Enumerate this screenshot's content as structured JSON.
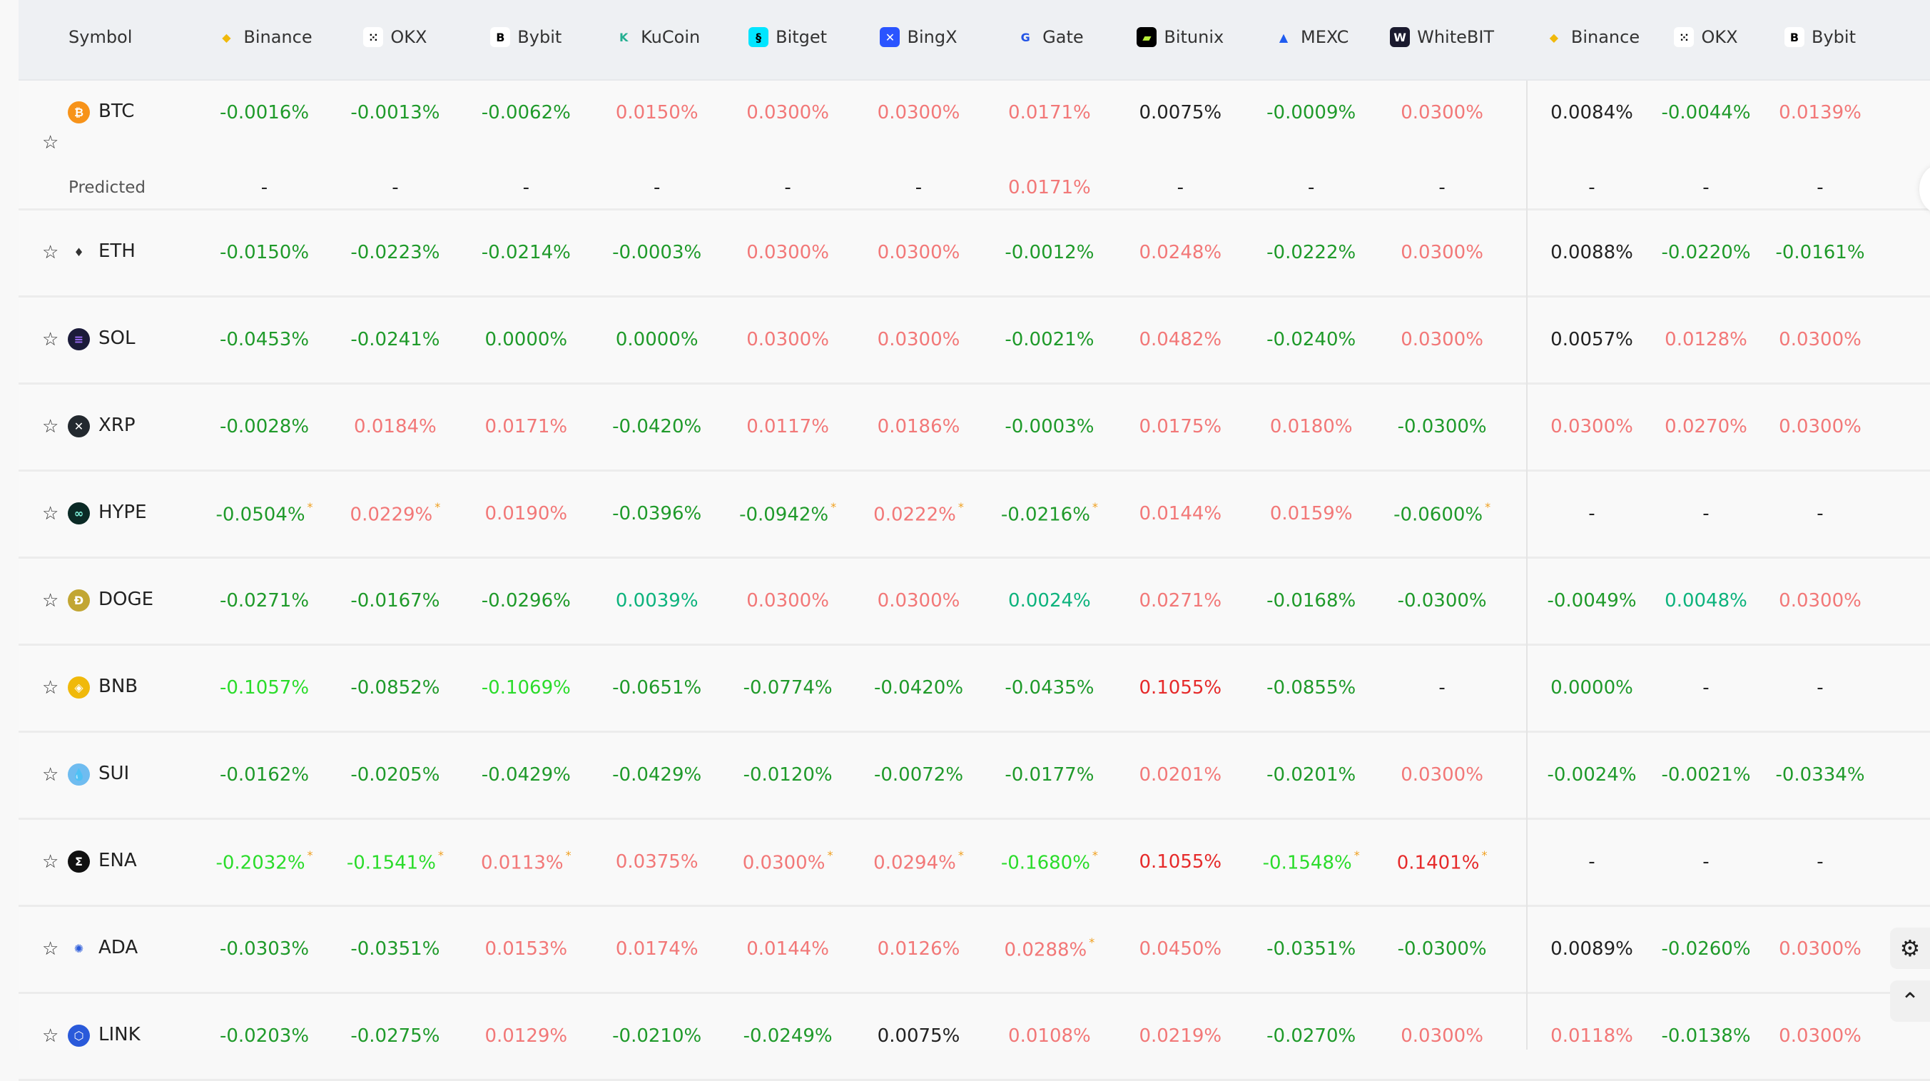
{
  "header": {
    "symbol_label": "Symbol",
    "exchanges": [
      {
        "name": "Binance",
        "icon": "binance-icon",
        "color": "#f0b90b",
        "glyph": "◆",
        "fg": "#f0b90b",
        "bg": "transparent"
      },
      {
        "name": "OKX",
        "icon": "okx-icon",
        "glyph": "⁙",
        "fg": "#000",
        "bg": "#fff"
      },
      {
        "name": "Bybit",
        "icon": "bybit-icon",
        "glyph": "B",
        "fg": "#000",
        "bg": "#fff"
      },
      {
        "name": "KuCoin",
        "icon": "kucoin-icon",
        "glyph": "K",
        "fg": "#23af91",
        "bg": "transparent"
      },
      {
        "name": "Bitget",
        "icon": "bitget-icon",
        "glyph": "§",
        "fg": "#000",
        "bg": "#00e5ff"
      },
      {
        "name": "BingX",
        "icon": "bingx-icon",
        "glyph": "✕",
        "fg": "#fff",
        "bg": "#2a54ff"
      },
      {
        "name": "Gate",
        "icon": "gate-icon",
        "glyph": "G",
        "fg": "#2354e6",
        "bg": "transparent"
      },
      {
        "name": "Bitunix",
        "icon": "bitunix-icon",
        "glyph": "▰",
        "fg": "#b8f03a",
        "bg": "#000"
      },
      {
        "name": "MEXC",
        "icon": "mexc-icon",
        "glyph": "▲",
        "fg": "#1f5cf0",
        "bg": "transparent"
      },
      {
        "name": "WhiteBIT",
        "icon": "whitebit-icon",
        "glyph": "W",
        "fg": "#fff",
        "bg": "#1a1a2e"
      },
      {
        "name": "Binance",
        "icon": "binance-icon",
        "glyph": "◆",
        "fg": "#f0b90b",
        "bg": "transparent"
      },
      {
        "name": "OKX",
        "icon": "okx-icon",
        "glyph": "⁙",
        "fg": "#000",
        "bg": "#fff"
      },
      {
        "name": "Bybit",
        "icon": "bybit-icon",
        "glyph": "B",
        "fg": "#000",
        "bg": "#fff"
      }
    ]
  },
  "colors": {
    "g": "#1f9a2a",
    "lg": "#2bdc2b",
    "t": "#0db37d",
    "p": "#f27878",
    "r": "#e62a2a",
    "k": "#222222",
    "asterisk": "#f0a020"
  },
  "predicted_label": "Predicted",
  "rows": [
    {
      "symbol": "BTC",
      "coin_color": "#f7931a",
      "glyph": "₿",
      "cells": [
        [
          "-0.0016%",
          "g"
        ],
        [
          "-0.0013%",
          "g"
        ],
        [
          "-0.0062%",
          "g"
        ],
        [
          "0.0150%",
          "p"
        ],
        [
          "0.0300%",
          "p"
        ],
        [
          "0.0300%",
          "p"
        ],
        [
          "0.0171%",
          "p"
        ],
        [
          "0.0075%",
          "k"
        ],
        [
          "-0.0009%",
          "g"
        ],
        [
          "0.0300%",
          "p"
        ],
        [
          "0.0084%",
          "k"
        ],
        [
          "-0.0044%",
          "g"
        ],
        [
          "0.0139%",
          "p"
        ]
      ],
      "predicted": [
        [
          "-",
          "k"
        ],
        [
          "-",
          "k"
        ],
        [
          "-",
          "k"
        ],
        [
          "-",
          "k"
        ],
        [
          "-",
          "k"
        ],
        [
          "-",
          "k"
        ],
        [
          "0.0171%",
          "p"
        ],
        [
          "-",
          "k"
        ],
        [
          "-",
          "k"
        ],
        [
          "-",
          "k"
        ],
        [
          "-",
          "k"
        ],
        [
          "-",
          "k"
        ],
        [
          "-",
          "k"
        ]
      ]
    },
    {
      "symbol": "ETH",
      "coin_color": "#f9f9f9",
      "glyph": "♦",
      "fg": "#333",
      "cells": [
        [
          "-0.0150%",
          "g"
        ],
        [
          "-0.0223%",
          "g"
        ],
        [
          "-0.0214%",
          "g"
        ],
        [
          "-0.0003%",
          "g"
        ],
        [
          "0.0300%",
          "p"
        ],
        [
          "0.0300%",
          "p"
        ],
        [
          "-0.0012%",
          "g"
        ],
        [
          "0.0248%",
          "p"
        ],
        [
          "-0.0222%",
          "g"
        ],
        [
          "0.0300%",
          "p"
        ],
        [
          "0.0088%",
          "k"
        ],
        [
          "-0.0220%",
          "g"
        ],
        [
          "-0.0161%",
          "g"
        ]
      ]
    },
    {
      "symbol": "SOL",
      "coin_color": "#1b1b3a",
      "glyph": "≡",
      "fg": "#9b6cf7",
      "cells": [
        [
          "-0.0453%",
          "g"
        ],
        [
          "-0.0241%",
          "g"
        ],
        [
          "0.0000%",
          "g"
        ],
        [
          "0.0000%",
          "g"
        ],
        [
          "0.0300%",
          "p"
        ],
        [
          "0.0300%",
          "p"
        ],
        [
          "-0.0021%",
          "g"
        ],
        [
          "0.0482%",
          "p"
        ],
        [
          "-0.0240%",
          "g"
        ],
        [
          "0.0300%",
          "p"
        ],
        [
          "0.0057%",
          "k"
        ],
        [
          "0.0128%",
          "p"
        ],
        [
          "0.0300%",
          "p"
        ]
      ]
    },
    {
      "symbol": "XRP",
      "coin_color": "#23292f",
      "glyph": "✕",
      "cells": [
        [
          "-0.0028%",
          "g"
        ],
        [
          "0.0184%",
          "p"
        ],
        [
          "0.0171%",
          "p"
        ],
        [
          "-0.0420%",
          "g"
        ],
        [
          "0.0117%",
          "p"
        ],
        [
          "0.0186%",
          "p"
        ],
        [
          "-0.0003%",
          "g"
        ],
        [
          "0.0175%",
          "p"
        ],
        [
          "0.0180%",
          "p"
        ],
        [
          "-0.0300%",
          "g"
        ],
        [
          "0.0300%",
          "p"
        ],
        [
          "0.0270%",
          "p"
        ],
        [
          "0.0300%",
          "p"
        ]
      ]
    },
    {
      "symbol": "HYPE",
      "coin_color": "#0b2a26",
      "glyph": "∞",
      "fg": "#7ff2dc",
      "cells": [
        [
          "-0.0504%",
          "g",
          1
        ],
        [
          "0.0229%",
          "p",
          1
        ],
        [
          "0.0190%",
          "p"
        ],
        [
          "-0.0396%",
          "g"
        ],
        [
          "-0.0942%",
          "g",
          1
        ],
        [
          "0.0222%",
          "p",
          1
        ],
        [
          "-0.0216%",
          "g",
          1
        ],
        [
          "0.0144%",
          "p"
        ],
        [
          "0.0159%",
          "p"
        ],
        [
          "-0.0600%",
          "g",
          1
        ],
        [
          "-",
          "k"
        ],
        [
          "-",
          "k"
        ],
        [
          "-",
          "k"
        ]
      ]
    },
    {
      "symbol": "DOGE",
      "coin_color": "#c2a633",
      "glyph": "Ð",
      "cells": [
        [
          "-0.0271%",
          "g"
        ],
        [
          "-0.0167%",
          "g"
        ],
        [
          "-0.0296%",
          "g"
        ],
        [
          "0.0039%",
          "t"
        ],
        [
          "0.0300%",
          "p"
        ],
        [
          "0.0300%",
          "p"
        ],
        [
          "0.0024%",
          "t"
        ],
        [
          "0.0271%",
          "p"
        ],
        [
          "-0.0168%",
          "g"
        ],
        [
          "-0.0300%",
          "g"
        ],
        [
          "-0.0049%",
          "g"
        ],
        [
          "0.0048%",
          "t"
        ],
        [
          "0.0300%",
          "p"
        ]
      ]
    },
    {
      "symbol": "BNB",
      "coin_color": "#f0b90b",
      "glyph": "◈",
      "cells": [
        [
          "-0.1057%",
          "lg"
        ],
        [
          "-0.0852%",
          "g"
        ],
        [
          "-0.1069%",
          "lg"
        ],
        [
          "-0.0651%",
          "g"
        ],
        [
          "-0.0774%",
          "g"
        ],
        [
          "-0.0420%",
          "g"
        ],
        [
          "-0.0435%",
          "g"
        ],
        [
          "0.1055%",
          "r"
        ],
        [
          "-0.0855%",
          "g"
        ],
        [
          "-",
          "k"
        ],
        [
          "0.0000%",
          "g"
        ],
        [
          "-",
          "k"
        ],
        [
          "-",
          "k"
        ]
      ]
    },
    {
      "symbol": "SUI",
      "coin_color": "#6fbcf0",
      "glyph": "💧",
      "cells": [
        [
          "-0.0162%",
          "g"
        ],
        [
          "-0.0205%",
          "g"
        ],
        [
          "-0.0429%",
          "g"
        ],
        [
          "-0.0429%",
          "g"
        ],
        [
          "-0.0120%",
          "g"
        ],
        [
          "-0.0072%",
          "g"
        ],
        [
          "-0.0177%",
          "g"
        ],
        [
          "0.0201%",
          "p"
        ],
        [
          "-0.0201%",
          "g"
        ],
        [
          "0.0300%",
          "p"
        ],
        [
          "-0.0024%",
          "g"
        ],
        [
          "-0.0021%",
          "g"
        ],
        [
          "-0.0334%",
          "g"
        ]
      ]
    },
    {
      "symbol": "ENA",
      "coin_color": "#111",
      "glyph": "Σ",
      "cells": [
        [
          "-0.2032%",
          "lg",
          1
        ],
        [
          "-0.1541%",
          "lg",
          1
        ],
        [
          "0.0113%",
          "p",
          1
        ],
        [
          "0.0375%",
          "p"
        ],
        [
          "0.0300%",
          "p",
          1
        ],
        [
          "0.0294%",
          "p",
          1
        ],
        [
          "-0.1680%",
          "lg",
          1
        ],
        [
          "0.1055%",
          "r"
        ],
        [
          "-0.1548%",
          "lg",
          1
        ],
        [
          "0.1401%",
          "r",
          1
        ],
        [
          "-",
          "k"
        ],
        [
          "-",
          "k"
        ],
        [
          "-",
          "k"
        ]
      ]
    },
    {
      "symbol": "ADA",
      "coin_color": "#f9f9f9",
      "glyph": "✺",
      "fg": "#2a5ada",
      "cells": [
        [
          "-0.0303%",
          "g"
        ],
        [
          "-0.0351%",
          "g"
        ],
        [
          "0.0153%",
          "p"
        ],
        [
          "0.0174%",
          "p"
        ],
        [
          "0.0144%",
          "p"
        ],
        [
          "0.0126%",
          "p"
        ],
        [
          "0.0288%",
          "p",
          1
        ],
        [
          "0.0450%",
          "p"
        ],
        [
          "-0.0351%",
          "g"
        ],
        [
          "-0.0300%",
          "g"
        ],
        [
          "0.0089%",
          "k"
        ],
        [
          "-0.0260%",
          "g"
        ],
        [
          "0.0300%",
          "p"
        ]
      ]
    },
    {
      "symbol": "LINK",
      "coin_color": "#2a5ada",
      "glyph": "⬡",
      "cells": [
        [
          "-0.0203%",
          "g"
        ],
        [
          "-0.0275%",
          "g"
        ],
        [
          "0.0129%",
          "p"
        ],
        [
          "-0.0210%",
          "g"
        ],
        [
          "-0.0249%",
          "g"
        ],
        [
          "0.0075%",
          "k"
        ],
        [
          "0.0108%",
          "p"
        ],
        [
          "0.0219%",
          "p"
        ],
        [
          "-0.0270%",
          "g"
        ],
        [
          "0.0300%",
          "p"
        ],
        [
          "0.0118%",
          "p"
        ],
        [
          "-0.0138%",
          "g"
        ],
        [
          "0.0300%",
          "p"
        ]
      ]
    }
  ],
  "widgets": {
    "settings_icon": "gear-icon",
    "scroll_top_icon": "chevron-up-icon",
    "settings_glyph": "⚙",
    "scroll_top_glyph": "⌃",
    "star_glyph": "☆",
    "asterisk": "*"
  }
}
